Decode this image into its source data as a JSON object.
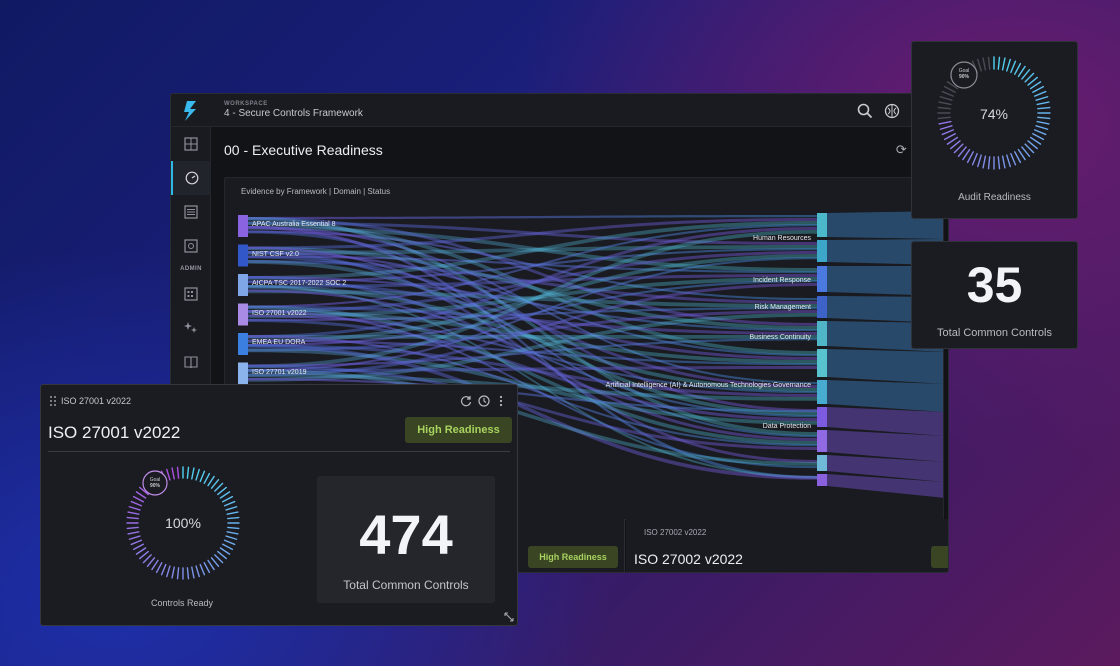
{
  "workspace": {
    "label": "WORKSPACE",
    "name": "4 - Secure Controls Framework"
  },
  "sidebar": {
    "admin_label": "ADMIN"
  },
  "page": {
    "title": "00 - Executive Readiness",
    "refresh_glyph": "⟳ +"
  },
  "sankey": {
    "title": "Evidence by Framework | Domain | Status",
    "frameworks": [
      {
        "label": "APAC Australia Essential 8",
        "color": "#8a63e0"
      },
      {
        "label": "NIST CSF v2.0",
        "color": "#3157c9"
      },
      {
        "label": "AICPA TSC 2017-2022 SOC 2",
        "color": "#7fa6e6"
      },
      {
        "label": "ISO 27001 v2022",
        "color": "#a98be6"
      },
      {
        "label": "EMEA EU DORA",
        "color": "#3b7fe0"
      },
      {
        "label": "ISO 27701 v2019",
        "color": "#8bb3ec"
      }
    ],
    "domains": [
      "Human Resources",
      "Incident Response",
      "Risk Management",
      "Business Continuity",
      "Artificial Intelligence (AI) & Autonomous Technologies Governance",
      "Data Protection"
    ]
  },
  "bottom_cards": {
    "left_badge": "High Readiness",
    "right_subtitle": "ISO 27002 v2022",
    "right_title": "ISO 27002 v2022"
  },
  "audit_card": {
    "goal_label": "Goal",
    "goal_value": "90%",
    "percent": "74%",
    "percent_value": 74,
    "caption": "Audit Readiness"
  },
  "total_card": {
    "number": "35",
    "caption": "Total Common Controls"
  },
  "iso_card": {
    "small_title": "ISO 27001 v2022",
    "title": "ISO 27001 v2022",
    "badge": "High Readiness",
    "goal_label": "Goal",
    "goal_value": "90%",
    "percent": "100%",
    "percent_value": 100,
    "ring_caption": "Controls Ready",
    "total_number": "474",
    "total_caption": "Total Common Controls"
  },
  "colors": {
    "accent": "#2fb7e8",
    "badge_bg": "#3a4523",
    "badge_text": "#a8d35f",
    "ring_start": "#4fd3f0",
    "ring_end": "#b04de0"
  }
}
